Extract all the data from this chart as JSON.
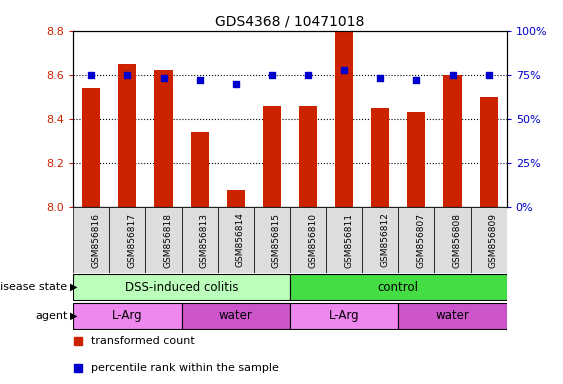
{
  "title": "GDS4368 / 10471018",
  "samples": [
    "GSM856816",
    "GSM856817",
    "GSM856818",
    "GSM856813",
    "GSM856814",
    "GSM856815",
    "GSM856810",
    "GSM856811",
    "GSM856812",
    "GSM856807",
    "GSM856808",
    "GSM856809"
  ],
  "red_values": [
    8.54,
    8.65,
    8.62,
    8.34,
    8.08,
    8.46,
    8.46,
    8.8,
    8.45,
    8.43,
    8.6,
    8.5
  ],
  "blue_values": [
    75,
    75,
    73,
    72,
    70,
    75,
    75,
    78,
    73,
    72,
    75,
    75
  ],
  "ylim_left": [
    8.0,
    8.8
  ],
  "ylim_right": [
    0,
    100
  ],
  "yticks_left": [
    8.0,
    8.2,
    8.4,
    8.6,
    8.8
  ],
  "yticks_right": [
    0,
    25,
    50,
    75,
    100
  ],
  "ytick_labels_right": [
    "0%",
    "25%",
    "50%",
    "75%",
    "100%"
  ],
  "bar_color": "#cc2200",
  "dot_color": "#0000cc",
  "disease_state_groups": [
    {
      "label": "DSS-induced colitis",
      "start": 0,
      "end": 6,
      "color": "#bbffbb"
    },
    {
      "label": "control",
      "start": 6,
      "end": 12,
      "color": "#44dd44"
    }
  ],
  "agent_groups": [
    {
      "label": "L-Arg",
      "start": 0,
      "end": 3,
      "color": "#ee88ee"
    },
    {
      "label": "water",
      "start": 3,
      "end": 6,
      "color": "#cc55cc"
    },
    {
      "label": "L-Arg",
      "start": 6,
      "end": 9,
      "color": "#ee88ee"
    },
    {
      "label": "water",
      "start": 9,
      "end": 12,
      "color": "#cc55cc"
    }
  ],
  "legend_items": [
    {
      "label": "transformed count",
      "color": "#cc2200"
    },
    {
      "label": "percentile rank within the sample",
      "color": "#0000cc"
    }
  ],
  "label_disease_state": "disease state",
  "label_agent": "agent",
  "background_color": "#ffffff",
  "tick_label_color_left": "#cc2200",
  "tick_label_color_right": "#0000cc",
  "sample_bg_color": "#dddddd",
  "bar_width": 0.5
}
